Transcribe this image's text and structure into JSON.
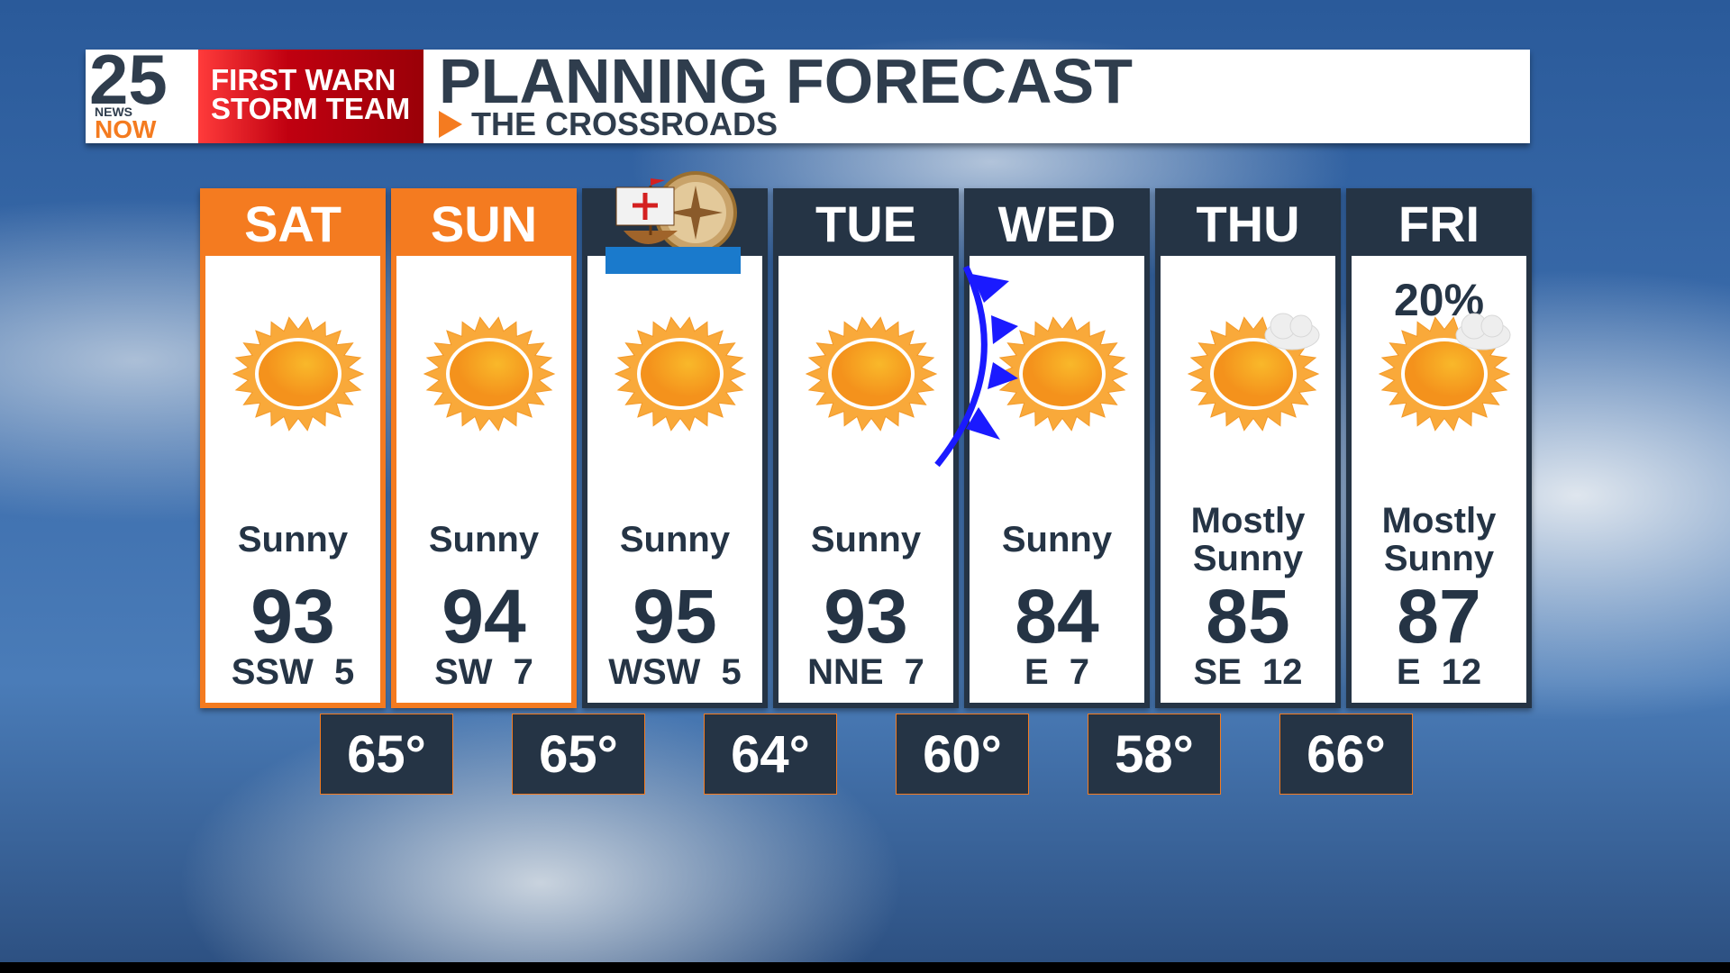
{
  "header": {
    "logo_number": "25",
    "logo_news": "NEWS",
    "logo_now": "NOW",
    "team_line1": "FIRST WARN",
    "team_line2": "STORM TEAM",
    "title": "PLANNING FORECAST",
    "subtitle": "THE CROSSROADS"
  },
  "colors": {
    "accent": "#f47b20",
    "dark": "#253445",
    "red": "#c00010",
    "front": "#1a1aff"
  },
  "days": [
    {
      "day": "SAT",
      "highlight": true,
      "icon": "sunny-icon",
      "condition": "Sunny",
      "high": "93",
      "wind": "SSW 5"
    },
    {
      "day": "SUN",
      "highlight": true,
      "icon": "sunny-icon",
      "condition": "Sunny",
      "high": "94",
      "wind": "SW 7"
    },
    {
      "day": "",
      "holiday_icon": "ship-compass-icon",
      "icon": "sunny-icon",
      "condition": "Sunny",
      "high": "95",
      "wind": "WSW 5"
    },
    {
      "day": "TUE",
      "icon": "sunny-icon",
      "condition": "Sunny",
      "high": "93",
      "wind": "NNE 7"
    },
    {
      "day": "WED",
      "icon": "sunny-icon",
      "condition": "Sunny",
      "high": "84",
      "wind": "E 7",
      "front": "cold-front-icon"
    },
    {
      "day": "THU",
      "icon": "mostly-sunny-icon",
      "condition": "Mostly Sunny",
      "high": "85",
      "wind": "SE 12"
    },
    {
      "day": "FRI",
      "icon": "mostly-sunny-icon",
      "precip": "20%",
      "condition": "Mostly Sunny",
      "high": "87",
      "wind": "E 12"
    }
  ],
  "lows": [
    "65°",
    "65°",
    "64°",
    "60°",
    "58°",
    "66°"
  ]
}
